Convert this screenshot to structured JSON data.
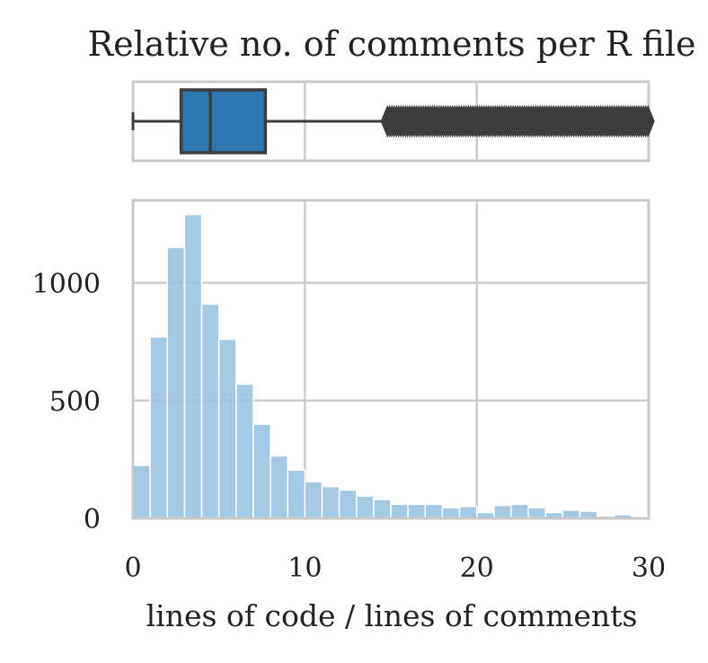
{
  "chart_data": {
    "type": "bar",
    "title": "Relative no. of comments per R file",
    "xlabel": "lines of code / lines of comments",
    "ylabel": "",
    "xlim": [
      0,
      30
    ],
    "ylim": [
      0,
      1350
    ],
    "xticks": [
      0,
      10,
      20,
      30
    ],
    "yticks": [
      0,
      500,
      1000
    ],
    "grid": true,
    "bin_width": 1,
    "bin_starts": [
      0,
      1,
      2,
      3,
      4,
      5,
      6,
      7,
      8,
      9,
      10,
      11,
      12,
      13,
      14,
      15,
      16,
      17,
      18,
      19,
      20,
      21,
      22,
      23,
      24,
      25,
      26,
      27,
      28,
      29
    ],
    "values": [
      225,
      770,
      1150,
      1290,
      910,
      760,
      570,
      400,
      265,
      205,
      155,
      135,
      120,
      95,
      80,
      60,
      60,
      60,
      45,
      50,
      25,
      55,
      60,
      45,
      25,
      35,
      30,
      10,
      15,
      5
    ],
    "boxplot": {
      "min": 0,
      "q1": 2.8,
      "median": 4.5,
      "q3": 7.7,
      "whisker_high": 14.8,
      "outliers_from": 14.8,
      "outliers_to": 30
    },
    "colors": {
      "hist": "#9ac3e0",
      "box": "#2e77b0",
      "line": "#3d3d3d",
      "grid": "#cccccc",
      "frame": "#c8c8c8"
    }
  }
}
